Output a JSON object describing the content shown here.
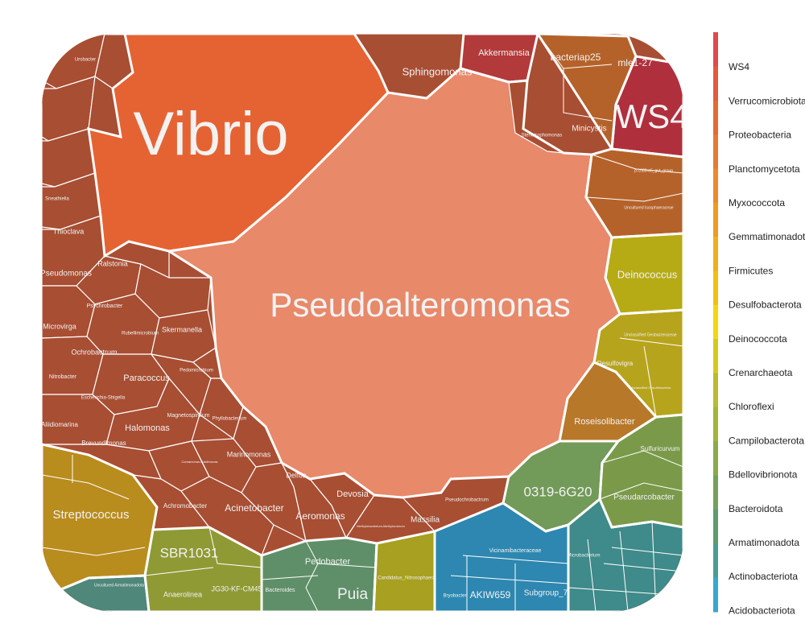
{
  "chart_data": {
    "type": "voronoi-treemap",
    "title": "",
    "legend": {
      "placement": "right",
      "entries": [
        {
          "name": "WS4",
          "color": "#e04a49"
        },
        {
          "name": "Verrucomicrobiota",
          "color": "#e45a3e"
        },
        {
          "name": "Proteobacteria",
          "color": "#e56a35"
        },
        {
          "name": "Planctomycetota",
          "color": "#e8792f"
        },
        {
          "name": "Myxococcota",
          "color": "#eb8a29"
        },
        {
          "name": "Gemmatimonadota",
          "color": "#ee9b22"
        },
        {
          "name": "Firmicutes",
          "color": "#f0ad1c"
        },
        {
          "name": "Desulfobacterota",
          "color": "#f2c015"
        },
        {
          "name": "Deinococcota",
          "color": "#f3d70c"
        },
        {
          "name": "Crenarchaeota",
          "color": "#d7c81d"
        },
        {
          "name": "Chloroflexi",
          "color": "#b9bc2f"
        },
        {
          "name": "Campilobacterota",
          "color": "#a2b43c"
        },
        {
          "name": "Bdellovibrionota",
          "color": "#8caa4a"
        },
        {
          "name": "Bacteroidota",
          "color": "#74a15b"
        },
        {
          "name": "Armatimonadota",
          "color": "#5f9b70"
        },
        {
          "name": "Actinobacteriota",
          "color": "#4b9c92"
        },
        {
          "name": "Acidobacteriota",
          "color": "#3aa6cf"
        }
      ]
    },
    "phyla": [
      {
        "name": "Proteobacteria",
        "color": "#a84e33"
      },
      {
        "name": "Verrucomicrobiota",
        "color": "#b33a3a"
      },
      {
        "name": "WS4",
        "color": "#b02f3c"
      },
      {
        "name": "Planctomycetota",
        "color": "#b5622a"
      },
      {
        "name": "Deinococcota",
        "color": "#b6ab15"
      },
      {
        "name": "Desulfobacterota",
        "color": "#b7a41d"
      },
      {
        "name": "Myxococcota",
        "color": "#b8782a"
      },
      {
        "name": "Campilobacterota",
        "color": "#7a9a4a"
      },
      {
        "name": "Gemmatimonadota",
        "color": "#729a58"
      },
      {
        "name": "Acidobacteriota",
        "color": "#2d87b0"
      },
      {
        "name": "Actinobacteriota",
        "color": "#3f8a8a"
      },
      {
        "name": "Bacteroidota",
        "color": "#5f8f68"
      },
      {
        "name": "Crenarchaeota",
        "color": "#a7a020"
      },
      {
        "name": "Chloroflexi",
        "color": "#8f9a35"
      },
      {
        "name": "Armatimonadota",
        "color": "#4f877a"
      },
      {
        "name": "Firmicutes",
        "color": "#b98c1e"
      }
    ],
    "genera": [
      {
        "name": "Pseudoalteromonas",
        "color": "#e8896a"
      },
      {
        "name": "Vibrio",
        "color": "#e56333"
      },
      {
        "name": "Sphingomonas",
        "color": "#a84e33"
      },
      {
        "name": "Akkermansia",
        "color": "#b33a3a"
      },
      {
        "name": "bacteriap25",
        "color": "#b5622a"
      },
      {
        "name": "mle1-27",
        "color": "#b5622a"
      },
      {
        "name": "WS4",
        "color": "#b02f3c"
      },
      {
        "name": "Minicystis",
        "color": "#b5622a"
      },
      {
        "name": "Stenotrophomonas",
        "color": "#a84e33"
      },
      {
        "name": "p-1088-a5_gut_group",
        "color": "#b5622a"
      },
      {
        "name": "Uncultured Isosphaeraceae",
        "color": "#b5622a"
      },
      {
        "name": "Deinococcus",
        "color": "#b6ab15"
      },
      {
        "name": "Unclassified Geobacteraceae",
        "color": "#b7a41d"
      },
      {
        "name": "Desulfovigra",
        "color": "#b7a41d"
      },
      {
        "name": "Unclassified Desulfobacteria",
        "color": "#b7a41d"
      },
      {
        "name": "Roseisolibacter",
        "color": "#b8782a"
      },
      {
        "name": "Sulfuricurvum",
        "color": "#7a9a4a"
      },
      {
        "name": "Pseudarcobacter",
        "color": "#7a9a4a"
      },
      {
        "name": "0319-6G20",
        "color": "#729a58"
      },
      {
        "name": "Vicinamibacteraceae",
        "color": "#2d87b0"
      },
      {
        "name": "AKIW659",
        "color": "#2d87b0"
      },
      {
        "name": "Subgroup_7",
        "color": "#2d87b0"
      },
      {
        "name": "Bryobacter",
        "color": "#2d87b0"
      },
      {
        "name": "Microbacterium",
        "color": "#3f8a8a"
      },
      {
        "name": "Candidatus_Nitrosophaera",
        "color": "#a7a020"
      },
      {
        "name": "Pedobacter",
        "color": "#5f8f68"
      },
      {
        "name": "Bacteroides",
        "color": "#5f8f68"
      },
      {
        "name": "Puia",
        "color": "#5f8f68"
      },
      {
        "name": "SBR1031",
        "color": "#8f9a35"
      },
      {
        "name": "Anaerolinea",
        "color": "#8f9a35"
      },
      {
        "name": "JG30-KF-CM45",
        "color": "#8f9a35"
      },
      {
        "name": "Uncultured Armatimonadota",
        "color": "#4f877a"
      },
      {
        "name": "Streptococcus",
        "color": "#b98c1e"
      },
      {
        "name": "Acinetobacter",
        "color": "#a84e33"
      },
      {
        "name": "Aeromonas",
        "color": "#a84e33"
      },
      {
        "name": "Massilia",
        "color": "#a84e33"
      },
      {
        "name": "Devosia",
        "color": "#a84e33"
      },
      {
        "name": "Delftia",
        "color": "#a84e33"
      },
      {
        "name": "Marinomonas",
        "color": "#a84e33"
      },
      {
        "name": "Achromobacter",
        "color": "#a84e33"
      },
      {
        "name": "Halomonas",
        "color": "#a84e33"
      },
      {
        "name": "Brevundimonas",
        "color": "#a84e33"
      },
      {
        "name": "Aliidiomarina",
        "color": "#a84e33"
      },
      {
        "name": "Paracoccus",
        "color": "#a84e33"
      },
      {
        "name": "Magnetospirillum",
        "color": "#a84e33"
      },
      {
        "name": "Phyllobacterium",
        "color": "#a84e33"
      },
      {
        "name": "Pedomicrobium",
        "color": "#a84e33"
      },
      {
        "name": "Ochrobactrum",
        "color": "#a84e33"
      },
      {
        "name": "Escherichia-Shigella",
        "color": "#a84e33"
      },
      {
        "name": "Microvirga",
        "color": "#a84e33"
      },
      {
        "name": "Pseudomonas",
        "color": "#a84e33"
      },
      {
        "name": "Ralstonia",
        "color": "#a84e33"
      },
      {
        "name": "Psychrobacter",
        "color": "#a84e33"
      },
      {
        "name": "Rubellimicrobium",
        "color": "#a84e33"
      },
      {
        "name": "Skermanella",
        "color": "#a84e33"
      },
      {
        "name": "Thioclava",
        "color": "#a84e33"
      },
      {
        "name": "Sneathiella",
        "color": "#a84e33"
      },
      {
        "name": "Urobacter",
        "color": "#a84e33"
      },
      {
        "name": "Nitrobacter",
        "color": "#a84e33"
      },
      {
        "name": "Pseudochrobactrum",
        "color": "#a84e33"
      },
      {
        "name": "Methylobacterium-Methylorubrum",
        "color": "#a84e33"
      },
      {
        "name": "Comamonas-Caldimonas",
        "color": "#a84e33"
      }
    ]
  }
}
